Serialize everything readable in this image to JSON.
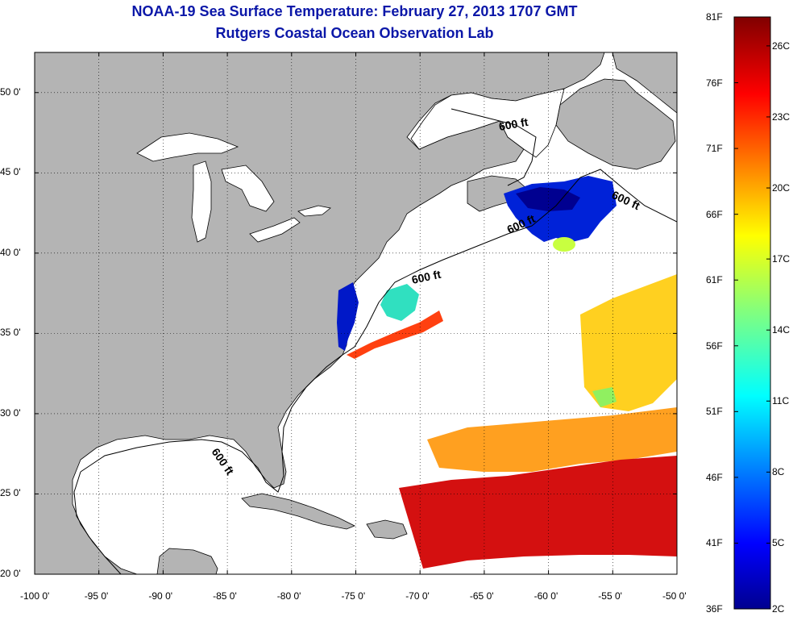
{
  "title": {
    "line1": "NOAA-19 Sea Surface Temperature:  February 27, 2013 1707 GMT",
    "line2": "Rutgers Coastal Ocean Observation Lab"
  },
  "map": {
    "lon_range": [
      -100,
      -50
    ],
    "lat_range": [
      20,
      52.5
    ],
    "lon_ticks": [
      "-100 0'",
      "-95 0'",
      "-90 0'",
      "-85 0'",
      "-80 0'",
      "-75 0'",
      "-70 0'",
      "-65 0'",
      "-60 0'",
      "-55 0'",
      "-50 0'"
    ],
    "lat_ticks": [
      "50 0'",
      "45 0'",
      "40 0'",
      "35 0'",
      "30 0'",
      "25 0'",
      "20 0'"
    ],
    "land_color": "#b4b4b4",
    "grid": "dotted",
    "contour_label": "600 ft"
  },
  "colorbar": {
    "range_f": [
      36,
      81
    ],
    "range_c": [
      2,
      27
    ],
    "f_labels": [
      "81F",
      "76F",
      "71F",
      "66F",
      "61F",
      "56F",
      "51F",
      "46F",
      "41F",
      "36F"
    ],
    "c_labels": [
      "26C",
      "23C",
      "20C",
      "17C",
      "14C",
      "11C",
      "8C",
      "5C",
      "2C"
    ],
    "colormap": "jet"
  }
}
